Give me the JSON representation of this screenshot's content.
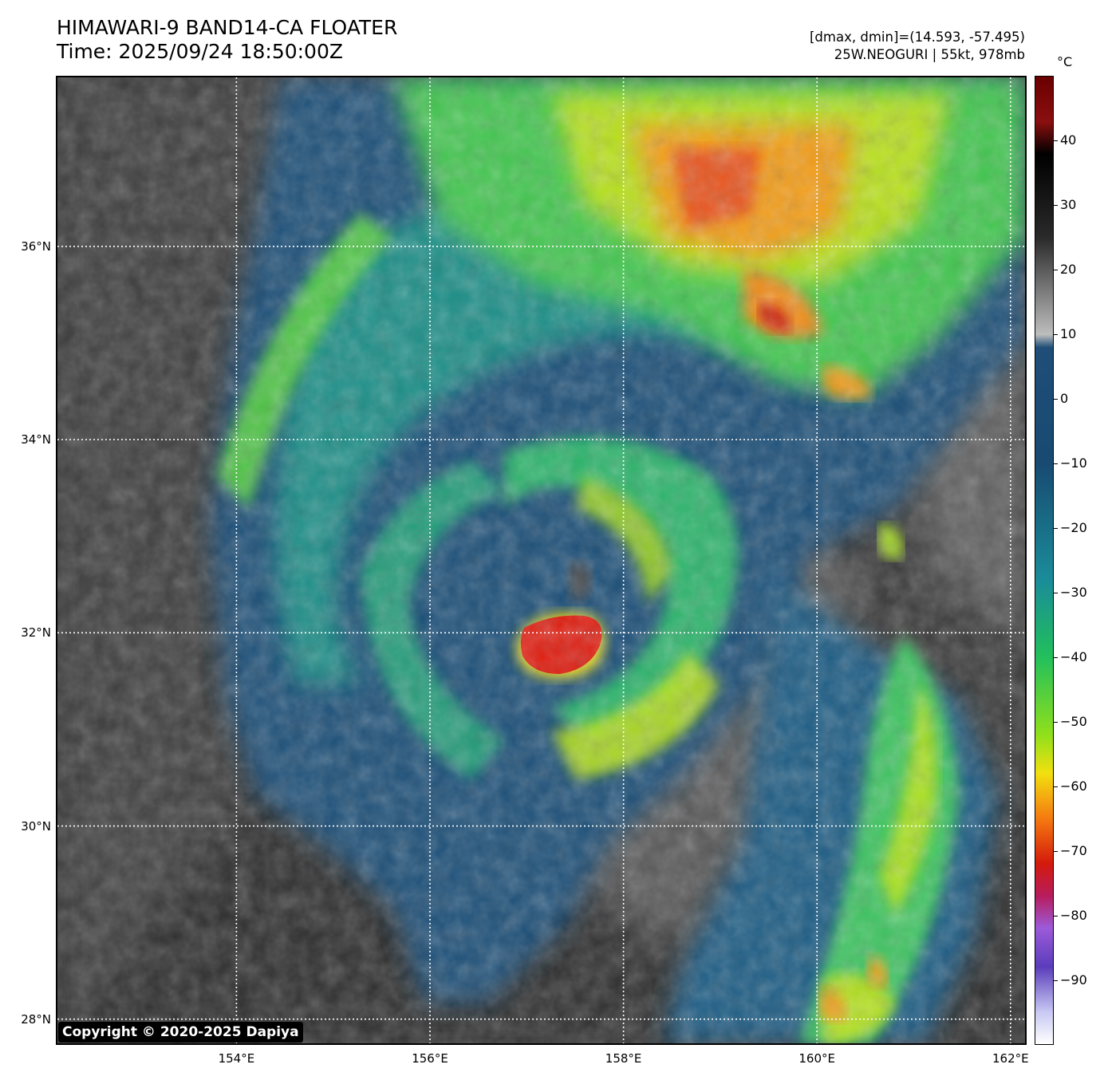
{
  "header": {
    "title_line1": "HIMAWARI-9 BAND14-CA FLOATER",
    "title_line2": "Time: 2025/09/24 18:50:00Z",
    "stats_line": "[dmax, dmin]=(14.593, -57.495)",
    "storm_line": "25W.NEOGURI | 55kt, 978mb"
  },
  "map": {
    "lon_range": [
      152.15,
      162.15
    ],
    "lat_range": [
      27.75,
      37.75
    ],
    "lat_ticks": [
      {
        "value": 36,
        "label": "36°N"
      },
      {
        "value": 34,
        "label": "34°N"
      },
      {
        "value": 32,
        "label": "32°N"
      },
      {
        "value": 30,
        "label": "30°N"
      },
      {
        "value": 28,
        "label": "28°N"
      }
    ],
    "lon_ticks": [
      {
        "value": 154,
        "label": "154°E"
      },
      {
        "value": 156,
        "label": "156°E"
      },
      {
        "value": 158,
        "label": "158°E"
      },
      {
        "value": 160,
        "label": "160°E"
      },
      {
        "value": 162,
        "label": "162°E"
      }
    ],
    "storm_center_lat": 31.9,
    "storm_center_lon": 157.2,
    "copyright": "Copyright © 2020-2025 Dapiya"
  },
  "colorbar": {
    "unit": "°C",
    "range": [
      -100,
      50
    ],
    "ticks": [
      {
        "value": 40,
        "label": "40"
      },
      {
        "value": 30,
        "label": "30"
      },
      {
        "value": 20,
        "label": "20"
      },
      {
        "value": 10,
        "label": "10"
      },
      {
        "value": 0,
        "label": "0"
      },
      {
        "value": -10,
        "label": "−10"
      },
      {
        "value": -20,
        "label": "−20"
      },
      {
        "value": -30,
        "label": "−30"
      },
      {
        "value": -40,
        "label": "−40"
      },
      {
        "value": -50,
        "label": "−50"
      },
      {
        "value": -60,
        "label": "−60"
      },
      {
        "value": -70,
        "label": "−70"
      },
      {
        "value": -80,
        "label": "−80"
      },
      {
        "value": -90,
        "label": "−90"
      }
    ],
    "stops": [
      {
        "value": 50,
        "color": "#6a0000"
      },
      {
        "value": 43,
        "color": "#8a0f0f"
      },
      {
        "value": 38,
        "color": "#000000"
      },
      {
        "value": 25,
        "color": "#2a2a2a"
      },
      {
        "value": 10,
        "color": "#bdbdbd"
      },
      {
        "value": 8,
        "color": "#1f4e78"
      },
      {
        "value": -10,
        "color": "#184a72"
      },
      {
        "value": -28,
        "color": "#1a8c99"
      },
      {
        "value": -40,
        "color": "#22bf5c"
      },
      {
        "value": -52,
        "color": "#8fe01b"
      },
      {
        "value": -58,
        "color": "#f2e010"
      },
      {
        "value": -65,
        "color": "#f57a10"
      },
      {
        "value": -72,
        "color": "#d41a0c"
      },
      {
        "value": -77,
        "color": "#b71c5c"
      },
      {
        "value": -82,
        "color": "#9d5ad9"
      },
      {
        "value": -88,
        "color": "#5a3dbb"
      },
      {
        "value": -95,
        "color": "#c8c8f3"
      },
      {
        "value": -100,
        "color": "#ffffff"
      }
    ]
  }
}
